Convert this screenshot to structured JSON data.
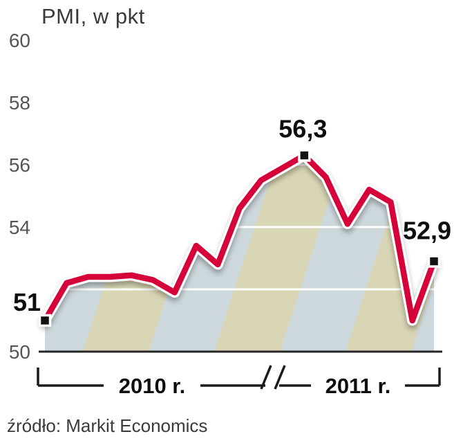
{
  "title": "PMI, w pkt",
  "source": "źródło: Markit Economics",
  "chart_data": {
    "type": "line",
    "title": "PMI, w pkt",
    "unit": "pkt",
    "ylim": [
      50,
      60
    ],
    "yticks": [
      {
        "value": 60,
        "label": "60"
      },
      {
        "value": 58,
        "label": "58"
      },
      {
        "value": 56,
        "label": "56"
      },
      {
        "value": 54,
        "label": "54"
      },
      {
        "value": 50,
        "label": "50"
      }
    ],
    "gridline_values": [
      52,
      54,
      56
    ],
    "x_groups": [
      {
        "label": "2010 r.",
        "count": 12
      },
      {
        "label": "2011 r.",
        "count": 7
      }
    ],
    "values": [
      51.0,
      52.2,
      52.4,
      52.4,
      52.45,
      52.3,
      51.9,
      53.4,
      52.8,
      54.6,
      55.5,
      55.9,
      56.3,
      55.6,
      54.1,
      55.2,
      54.8,
      51.0,
      52.9
    ],
    "annotations": [
      {
        "index": 0,
        "label": "51",
        "placement": "left"
      },
      {
        "index": 12,
        "label": "56,3",
        "placement": "above"
      },
      {
        "index": 18,
        "label": "52,9",
        "placement": "above-left"
      }
    ],
    "source": "źródło: Markit Economics",
    "colors": {
      "line": "#d6033b",
      "line_casing": "#ffffff",
      "band_a": "#d8d6b4",
      "band_b": "#cdd8dc",
      "axis": "#262626",
      "bracket": "#1a1a1a",
      "tick_text": "#555555",
      "label_text": "#0e0e0e",
      "marker": "#121212"
    }
  }
}
